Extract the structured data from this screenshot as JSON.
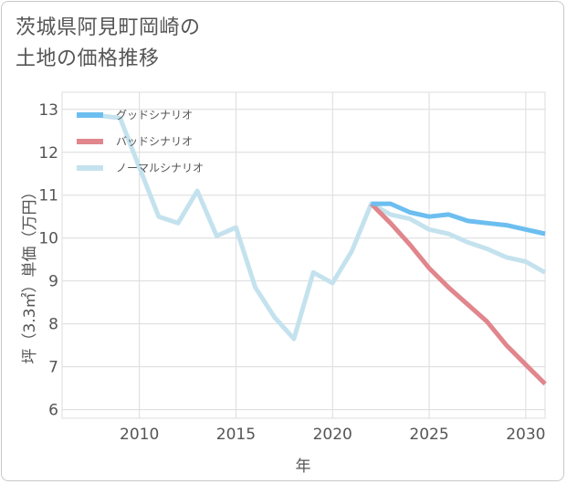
{
  "title_lines": [
    "茨城県阿見町岡崎の",
    "土地の価格推移"
  ],
  "chart_data": {
    "type": "line",
    "title": "茨城県阿見町岡崎の土地の価格推移",
    "xlabel": "年",
    "ylabel": "坪（3.3㎡）単価（万円）",
    "xlim": [
      2006,
      2031
    ],
    "ylim": [
      5.8,
      13.4
    ],
    "xticks": [
      2010,
      2015,
      2020,
      2025,
      2030
    ],
    "yticks": [
      6,
      7,
      8,
      9,
      10,
      11,
      12,
      13
    ],
    "grid": true,
    "legend_position": "top-left",
    "series": [
      {
        "name": "グッドシナリオ",
        "color": "#6cbef0",
        "x": [
          2022,
          2023,
          2024,
          2025,
          2026,
          2027,
          2028,
          2029,
          2030,
          2031
        ],
        "y": [
          10.8,
          10.8,
          10.6,
          10.5,
          10.55,
          10.4,
          10.35,
          10.3,
          10.2,
          10.1
        ]
      },
      {
        "name": "バッドシナリオ",
        "color": "#e0868c",
        "x": [
          2022,
          2023,
          2024,
          2025,
          2026,
          2027,
          2028,
          2029,
          2030,
          2031
        ],
        "y": [
          10.8,
          10.35,
          9.85,
          9.3,
          8.85,
          8.45,
          8.05,
          7.5,
          7.05,
          6.6
        ]
      },
      {
        "name": "ノーマルシナリオ",
        "color": "#c4e2ee",
        "x": [
          2008,
          2009,
          2010,
          2011,
          2012,
          2013,
          2014,
          2015,
          2016,
          2017,
          2018,
          2019,
          2020,
          2021,
          2022,
          2023,
          2024,
          2025,
          2026,
          2027,
          2028,
          2029,
          2030,
          2031
        ],
        "y": [
          12.85,
          12.8,
          11.65,
          10.5,
          10.35,
          11.1,
          10.05,
          10.25,
          8.85,
          8.15,
          7.65,
          9.2,
          8.95,
          9.7,
          10.8,
          10.55,
          10.45,
          10.2,
          10.1,
          9.9,
          9.75,
          9.55,
          9.45,
          9.2
        ]
      }
    ]
  }
}
